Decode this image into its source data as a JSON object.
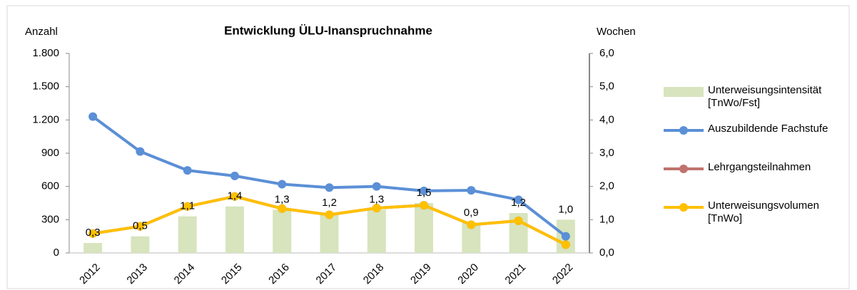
{
  "chart_data": {
    "type": "bar_line",
    "title": "Entwicklung ÜLU-Inanspruchnahme",
    "y_label": "Anzahl",
    "y2_label": "Wochen",
    "categories": [
      "2012",
      "2013",
      "2014",
      "2015",
      "2016",
      "2017",
      "2018",
      "2019",
      "2020",
      "2021",
      "2022"
    ],
    "ylim": [
      0,
      1800
    ],
    "yticks": [
      0,
      300,
      600,
      900,
      {
        "value": 1200,
        "label": "1.200"
      },
      {
        "value": 1500,
        "label": "1.500"
      },
      {
        "value": 1800,
        "label": "1.800"
      }
    ],
    "y2lim": [
      0,
      6
    ],
    "y2ticks": [
      {
        "value": 0,
        "label": "0,0"
      },
      {
        "value": 1,
        "label": "1,0"
      },
      {
        "value": 2,
        "label": "2,0"
      },
      {
        "value": 3,
        "label": "3,0"
      },
      {
        "value": 4,
        "label": "4,0"
      },
      {
        "value": 5,
        "label": "5,0"
      },
      {
        "value": 6,
        "label": "6,0"
      }
    ],
    "series": [
      {
        "name": "Unterweisungsintensität [TnWo/Fst]",
        "type": "bar",
        "axis": "y2",
        "color": "#d7e4bd",
        "values": [
          0.3,
          0.5,
          1.1,
          1.4,
          1.3,
          1.2,
          1.3,
          1.5,
          0.9,
          1.2,
          1.0
        ],
        "value_labels": [
          "0,3",
          "0,5",
          "1,1",
          "1,4",
          "1,3",
          "1,2",
          "1,3",
          "1,5",
          "0,9",
          "1,2",
          "1,0"
        ]
      },
      {
        "name": "Auszubildende Fachstufe",
        "type": "line",
        "color": "#5b8fd6",
        "values": [
          1230,
          915,
          745,
          695,
          620,
          590,
          600,
          560,
          565,
          480,
          150
        ]
      },
      {
        "name": "Lehrgangsteilnahmen",
        "type": "line",
        "color": "#c0726d",
        "values": [
          175,
          240,
          420,
          510,
          400,
          345,
          405,
          430,
          255,
          290,
          75
        ]
      },
      {
        "name": "Unterweisungsvolumen [TnWo]",
        "type": "line",
        "color": "#ffc000",
        "values": [
          175,
          240,
          420,
          510,
          400,
          345,
          405,
          430,
          255,
          290,
          75
        ]
      }
    ]
  }
}
